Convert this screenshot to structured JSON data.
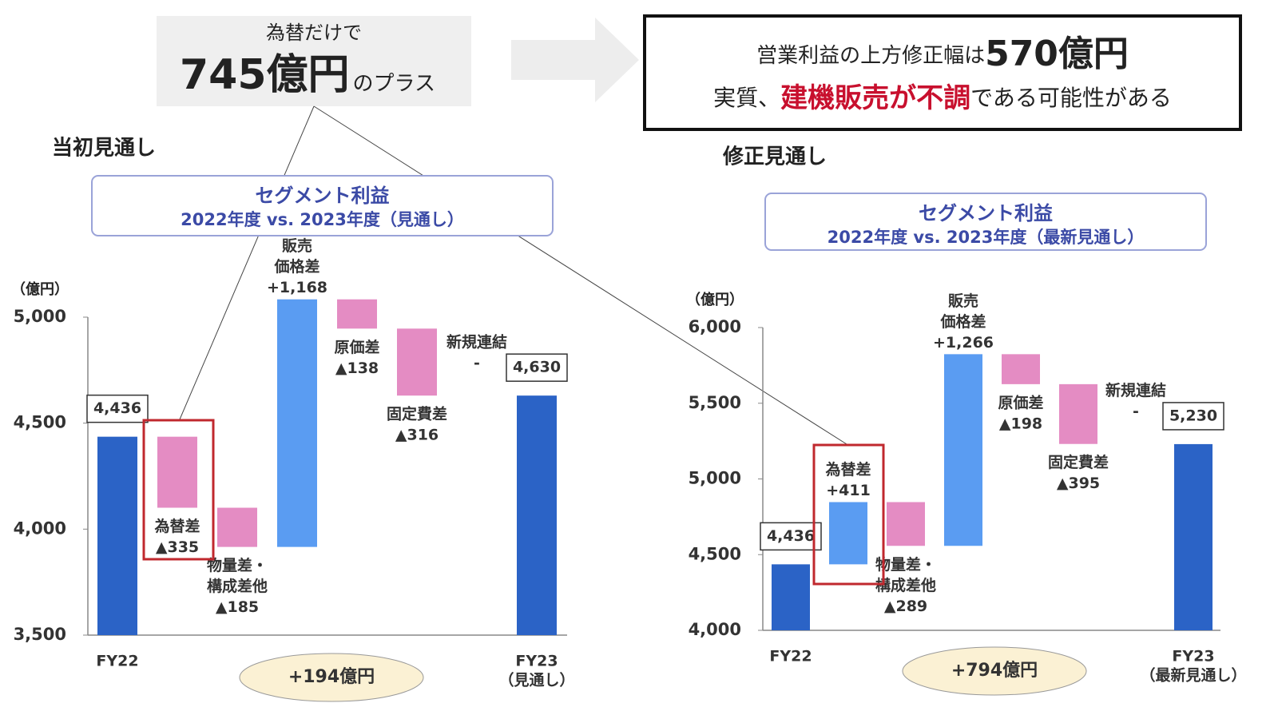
{
  "callouts": {
    "fx": {
      "lead": "為替だけで",
      "amount": "745億円",
      "tail": "のプラス"
    },
    "summary": {
      "line1": "営業利益の上方修正幅は",
      "amount": "570億円",
      "line2_lead": "実質、",
      "line2_highlight": "建機販売が不調",
      "line2_tail": "である可能性がある"
    }
  },
  "chart_data": [
    {
      "type": "waterfall",
      "heading": "当初見通し",
      "title": "セグメント利益",
      "subtitle": "2022年度 vs. 2023年度（見通し）",
      "unit": "（億円）",
      "categories": [
        [
          "FY22"
        ],
        [
          "為替差"
        ],
        [
          "物量差・",
          "構成差他"
        ],
        [
          "販売",
          "価格差"
        ],
        [
          "原価差"
        ],
        [
          "固定費差"
        ],
        [
          "新規連結"
        ],
        [
          "FY23",
          "（見通し）"
        ]
      ],
      "is_total": [
        true,
        false,
        false,
        false,
        false,
        false,
        false,
        true
      ],
      "values": [
        4436,
        -335,
        -185,
        1168,
        -138,
        -316,
        null,
        4630
      ],
      "value_labels": [
        "4,436",
        "▲335",
        "▲185",
        "+1,168",
        "▲138",
        "▲316",
        "-",
        "4,630"
      ],
      "ylim": [
        3500,
        5000
      ],
      "yticks": [
        {
          "value": 3500,
          "label": "3,500"
        },
        {
          "value": 4000,
          "label": "4,000"
        },
        {
          "value": 4500,
          "label": "4,500"
        },
        {
          "value": 5000,
          "label": "5,000"
        }
      ],
      "total_change": "+194億円",
      "colors": {
        "total": "#2b63c6",
        "increase": "#5a9cf2",
        "decrease": "#e48cc3"
      }
    },
    {
      "type": "waterfall",
      "heading": "修正見通し",
      "title": "セグメント利益",
      "subtitle": "2022年度 vs. 2023年度（最新見通し）",
      "unit": "（億円）",
      "categories": [
        [
          "FY22"
        ],
        [
          "為替差"
        ],
        [
          "物量差・",
          "構成差他"
        ],
        [
          "販売",
          "価格差"
        ],
        [
          "原価差"
        ],
        [
          "固定費差"
        ],
        [
          "新規連結"
        ],
        [
          "FY23",
          "（最新見通し）"
        ]
      ],
      "is_total": [
        true,
        false,
        false,
        false,
        false,
        false,
        false,
        true
      ],
      "values": [
        4436,
        411,
        -289,
        1266,
        -198,
        -395,
        null,
        5230
      ],
      "value_labels": [
        "4,436",
        "+411",
        "▲289",
        "+1,266",
        "▲198",
        "▲395",
        "-",
        "5,230"
      ],
      "ylim": [
        4000,
        6000
      ],
      "yticks": [
        {
          "value": 4000,
          "label": "4,000"
        },
        {
          "value": 4500,
          "label": "4,500"
        },
        {
          "value": 5000,
          "label": "5,000"
        },
        {
          "value": 5500,
          "label": "5,500"
        },
        {
          "value": 6000,
          "label": "6,000"
        }
      ],
      "total_change": "+794億円",
      "colors": {
        "total": "#2b63c6",
        "increase": "#5a9cf2",
        "decrease": "#e48cc3"
      }
    }
  ]
}
